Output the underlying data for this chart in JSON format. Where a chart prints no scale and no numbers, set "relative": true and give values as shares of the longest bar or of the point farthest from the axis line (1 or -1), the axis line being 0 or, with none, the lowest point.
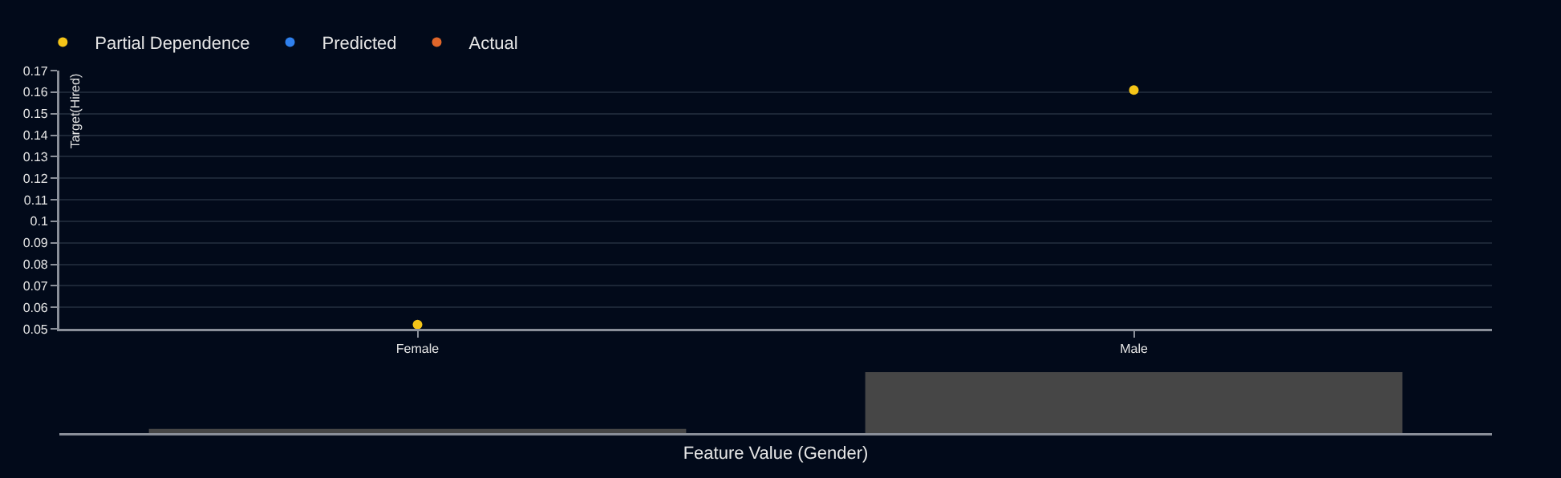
{
  "chart_data": [
    {
      "type": "scatter",
      "categories": [
        "Female",
        "Male"
      ],
      "ylabel": "Target(Hired)",
      "ylim": [
        0.05,
        0.17
      ],
      "yticks": [
        0.05,
        0.06,
        0.07,
        0.08,
        0.09,
        0.1,
        0.11,
        0.12,
        0.13,
        0.14,
        0.15,
        0.16,
        0.17
      ],
      "grid": "y",
      "legend": "top left",
      "marker": "circle",
      "series": [
        {
          "name": "Partial Dependence",
          "color": "#f5c518",
          "values": [
            0.052,
            0.161
          ]
        },
        {
          "name": "Predicted",
          "color": "#2f80ed",
          "values": [
            null,
            null
          ]
        },
        {
          "name": "Actual",
          "color": "#e0662a",
          "values": [
            null,
            null
          ]
        }
      ]
    },
    {
      "type": "bar",
      "categories": [
        null,
        null
      ],
      "relative": true,
      "xlabel": "Feature Value (Gender)",
      "values": [
        0.07,
        1
      ],
      "color": "#464646"
    }
  ]
}
